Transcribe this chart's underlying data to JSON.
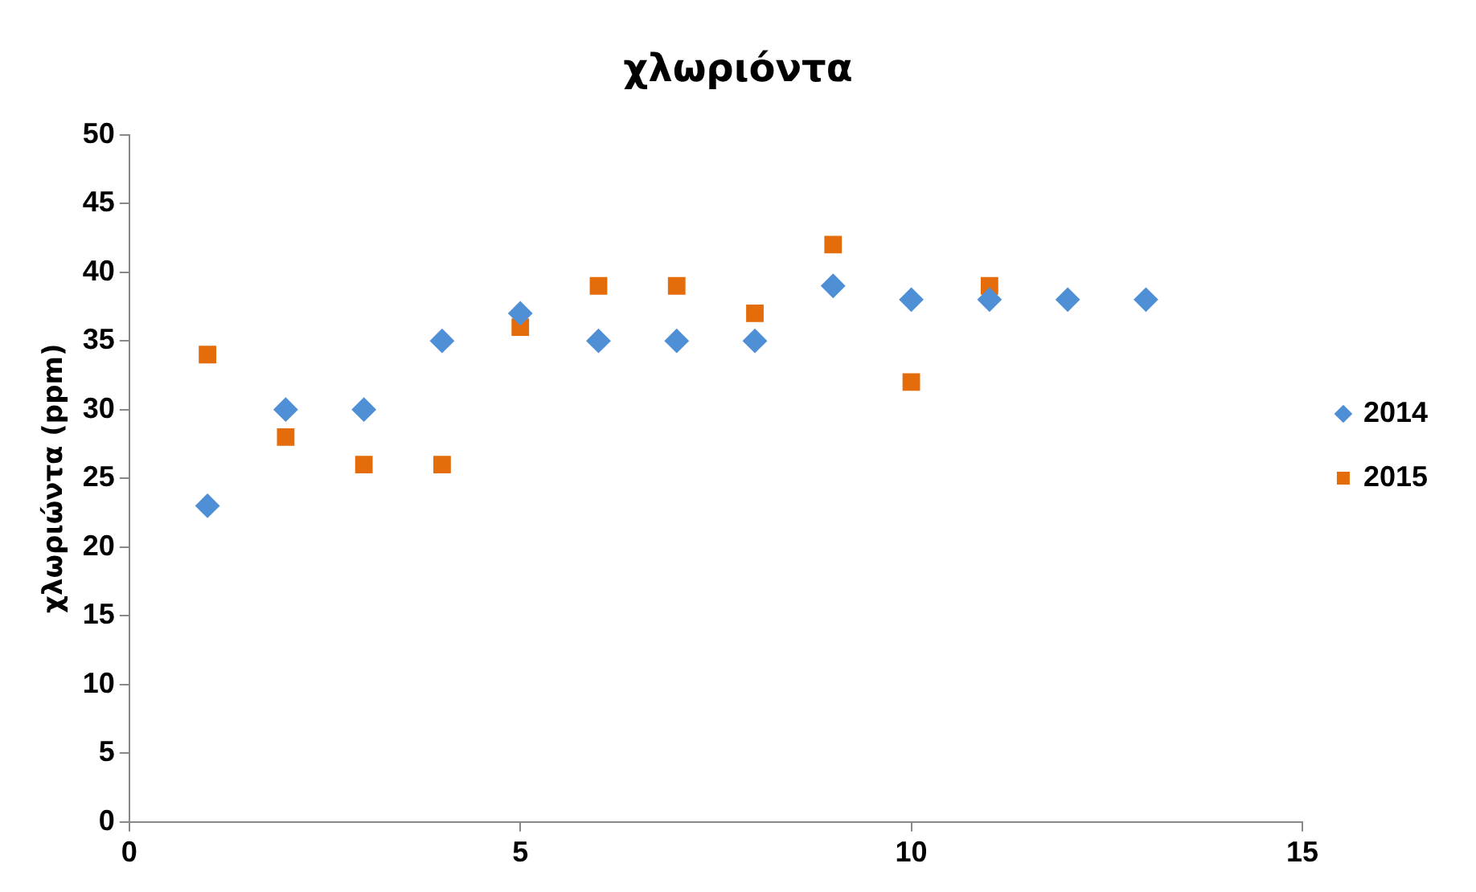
{
  "chart_data": {
    "type": "scatter",
    "title": "χλωριόντα",
    "ylabel": "χλωριώντα (ppm)",
    "xlim": [
      0,
      15
    ],
    "xticks": [
      0,
      5,
      10,
      15
    ],
    "ylim": [
      0,
      50
    ],
    "yticks": [
      0,
      5,
      10,
      15,
      20,
      25,
      30,
      35,
      40,
      45,
      50
    ],
    "grid": false,
    "legend": "right",
    "series": [
      {
        "name": "2014",
        "color": "#4f8fd6",
        "marker": "diamond",
        "x": [
          1,
          2,
          3,
          4,
          5,
          6,
          7,
          8,
          9,
          10,
          11,
          12,
          13
        ],
        "values": [
          23,
          30,
          30,
          35,
          37,
          35,
          35,
          35,
          39,
          38,
          38,
          38,
          38
        ]
      },
      {
        "name": "2015",
        "color": "#e46c0a",
        "marker": "square",
        "x": [
          1,
          2,
          3,
          4,
          5,
          6,
          7,
          8,
          9,
          10,
          11
        ],
        "values": [
          34,
          28,
          26,
          26,
          36,
          39,
          39,
          37,
          42,
          32,
          39
        ]
      }
    ]
  }
}
